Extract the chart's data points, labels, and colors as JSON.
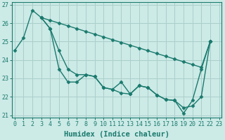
{
  "xlabel": "Humidex (Indice chaleur)",
  "bg_color": "#cceae6",
  "grid_color": "#aacfcc",
  "line_color": "#1a7a6e",
  "xlim": [
    0,
    23
  ],
  "ylim": [
    21,
    27
  ],
  "yticks": [
    21,
    22,
    23,
    24,
    25,
    26,
    27
  ],
  "xticks": [
    0,
    1,
    2,
    3,
    4,
    5,
    6,
    7,
    8,
    9,
    10,
    11,
    12,
    13,
    14,
    15,
    16,
    17,
    18,
    19,
    20,
    21,
    22,
    23
  ],
  "series_main": [
    24.5,
    25.2,
    26.7,
    26.3,
    25.7,
    23.5,
    22.8,
    22.8,
    23.2,
    23.1,
    22.5,
    22.4,
    22.8,
    22.15,
    22.6,
    22.5,
    22.1,
    21.85,
    21.8,
    21.1,
    21.8,
    23.5,
    25.0,
    null
  ],
  "series_upper": [
    null,
    null,
    null,
    26.3,
    26.15,
    26.0,
    25.85,
    25.7,
    25.55,
    25.4,
    25.25,
    25.1,
    24.95,
    24.8,
    24.65,
    24.5,
    24.35,
    24.2,
    24.05,
    23.9,
    23.75,
    23.6,
    25.0,
    null
  ],
  "series_mid": [
    null,
    null,
    null,
    26.3,
    25.7,
    24.5,
    23.5,
    23.2,
    23.2,
    23.1,
    22.5,
    22.4,
    22.2,
    22.15,
    22.6,
    22.5,
    22.1,
    21.85,
    21.8,
    21.4,
    21.5,
    22.0,
    25.0,
    null
  ],
  "marker": "D",
  "markersize": 2.5,
  "linewidth": 1.0,
  "xlabel_fontsize": 7.5,
  "tick_fontsize": 6
}
